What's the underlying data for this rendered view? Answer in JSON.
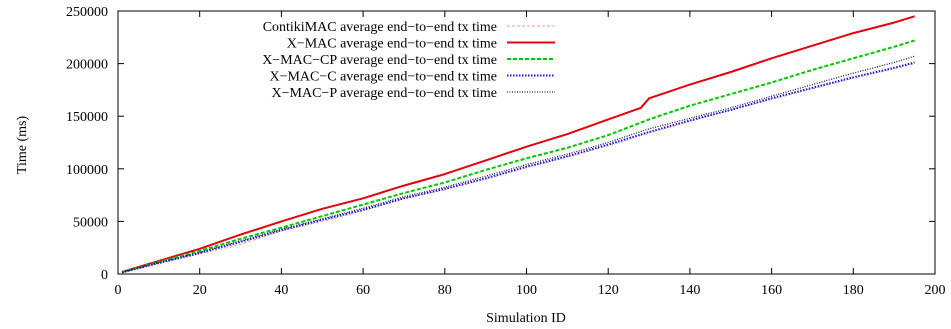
{
  "chart_data": {
    "type": "line",
    "title": "",
    "xlabel": "Simulation ID",
    "ylabel": "Time (ms)",
    "xlim": [
      0,
      200
    ],
    "ylim": [
      0,
      250000
    ],
    "xticks": [
      0,
      20,
      40,
      60,
      80,
      100,
      120,
      140,
      160,
      180,
      200
    ],
    "yticks": [
      0,
      50000,
      100000,
      150000,
      200000,
      250000
    ],
    "grid": false,
    "legend_position": "top-left",
    "series": [
      {
        "name": "ContikiMAC average end−to−end tx time",
        "color": "#ff9a9a",
        "dash": "dashed-fine",
        "x": [
          1,
          10,
          20,
          30,
          40,
          50,
          60,
          70,
          80,
          90,
          100,
          110,
          120,
          130,
          140,
          150,
          160,
          170,
          180,
          190,
          195
        ],
        "y": [
          1500,
          10000,
          19000,
          28000,
          41000,
          50000,
          60000,
          72000,
          80000,
          90000,
          101000,
          111000,
          122000,
          134000,
          145000,
          156000,
          166000,
          176000,
          186000,
          195000,
          200000
        ]
      },
      {
        "name": "X−MAC average end−to−end tx time",
        "color": "#e3000f",
        "dash": "solid",
        "x": [
          1,
          10,
          20,
          30,
          40,
          50,
          60,
          70,
          80,
          90,
          100,
          110,
          120,
          128,
          130,
          140,
          150,
          160,
          170,
          180,
          190,
          195
        ],
        "y": [
          2000,
          12500,
          24000,
          37500,
          50000,
          62000,
          72000,
          84000,
          95000,
          108000,
          121000,
          133000,
          147000,
          158000,
          167000,
          180000,
          192000,
          205000,
          217000,
          229000,
          239000,
          245000
        ]
      },
      {
        "name": "X−MAC−CP average end−to−end tx time",
        "color": "#00c800",
        "dash": "dashed",
        "x": [
          1,
          10,
          20,
          30,
          40,
          50,
          60,
          70,
          80,
          90,
          100,
          110,
          120,
          130,
          140,
          150,
          160,
          170,
          180,
          190,
          195
        ],
        "y": [
          1800,
          11500,
          22000,
          33500,
          44000,
          55000,
          66000,
          77000,
          87000,
          99000,
          110000,
          120000,
          132000,
          147000,
          160000,
          171000,
          182000,
          194000,
          205000,
          216000,
          222000
        ]
      },
      {
        "name": "X−MAC−C average end−to−end tx time",
        "color": "#1a1adb",
        "dash": "dotted",
        "x": [
          1,
          10,
          20,
          30,
          40,
          50,
          60,
          70,
          80,
          90,
          100,
          110,
          120,
          130,
          140,
          150,
          160,
          170,
          180,
          190,
          195
        ],
        "y": [
          1500,
          10500,
          20000,
          30500,
          41500,
          51500,
          61000,
          72000,
          81000,
          91000,
          102000,
          112000,
          123000,
          135000,
          146000,
          156000,
          167000,
          177000,
          187000,
          196000,
          201000
        ]
      },
      {
        "name": "X−MAC−P average end−to−end tx time",
        "color": "#1a1a4a",
        "dash": "dotted-fine",
        "x": [
          1,
          10,
          20,
          30,
          40,
          50,
          60,
          70,
          80,
          90,
          100,
          110,
          120,
          130,
          140,
          150,
          160,
          170,
          180,
          190,
          195
        ],
        "y": [
          1600,
          10800,
          20500,
          31500,
          42500,
          52500,
          62500,
          73500,
          82500,
          93000,
          104000,
          114000,
          125000,
          138000,
          148000,
          158000,
          169000,
          180000,
          191000,
          201000,
          207000
        ]
      }
    ]
  }
}
